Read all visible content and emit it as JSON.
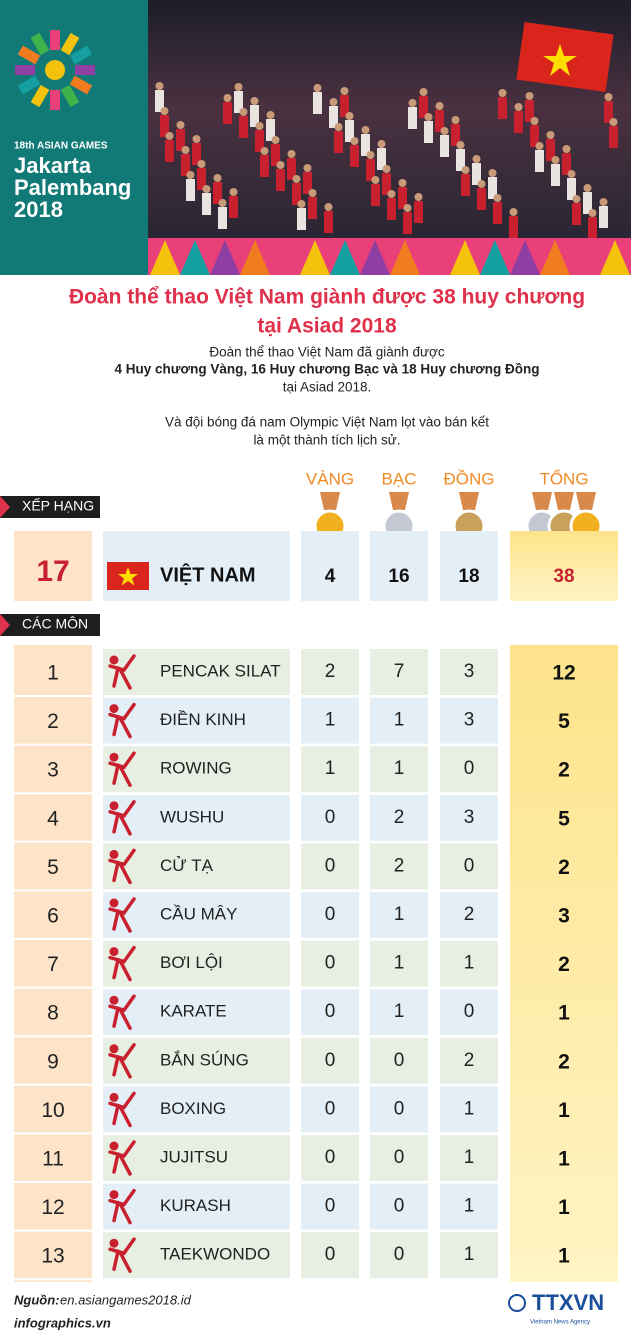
{
  "header": {
    "logo": {
      "edition": "18th ASIAN GAMES",
      "line1": "Jakarta",
      "line2": "Palembang",
      "year": "2018"
    }
  },
  "title": [
    "Đoàn thể thao Việt Nam giành được 38 huy chương",
    "tại Asiad 2018"
  ],
  "intro": [
    "Đoàn thể thao Việt Nam đã giành được",
    "4 Huy chương Vàng, 16 Huy chương Bạc và 18 Huy chương Đồng",
    "tại Asiad 2018.",
    "Và đội bóng đá nam Olympic Việt Nam lọt vào bán kết",
    "là một thành tích lịch sử."
  ],
  "columns": [
    "VÀNG",
    "BẠC",
    "ĐỒNG",
    "TỔNG"
  ],
  "ranking": {
    "label": "XẾP HẠNG",
    "rank": 17,
    "country": "VIỆT NAM",
    "gold": 4,
    "silver": 16,
    "bronze": 18,
    "total": 38
  },
  "table": {
    "label": "CÁC MÔN",
    "rows": [
      [
        1,
        "PENCAK SILAT",
        2,
        7,
        3,
        12
      ],
      [
        2,
        "ĐIỀN KINH",
        1,
        1,
        3,
        5
      ],
      [
        3,
        "ROWING",
        1,
        1,
        0,
        2
      ],
      [
        4,
        "WUSHU",
        0,
        2,
        3,
        5
      ],
      [
        5,
        "CỬ TẠ",
        0,
        2,
        0,
        2
      ],
      [
        6,
        "CẦU MÂY",
        0,
        1,
        2,
        3
      ],
      [
        7,
        "BƠI LỘI",
        0,
        1,
        1,
        2
      ],
      [
        8,
        "KARATE",
        0,
        1,
        0,
        1
      ],
      [
        9,
        "BẮN SÚNG",
        0,
        0,
        2,
        2
      ],
      [
        10,
        "BOXING",
        0,
        0,
        1,
        1
      ],
      [
        11,
        "JUJITSU",
        0,
        0,
        1,
        1
      ],
      [
        12,
        "KURASH",
        0,
        0,
        1,
        1
      ],
      [
        13,
        "TAEKWONDO",
        0,
        0,
        1,
        1
      ]
    ]
  },
  "footer": {
    "source_label": "Nguồn:",
    "source": "en.asiangames2018.id",
    "site": "infographics.vn",
    "agency": "TTXVN",
    "agency_sub": "Vietnam News Agency"
  }
}
